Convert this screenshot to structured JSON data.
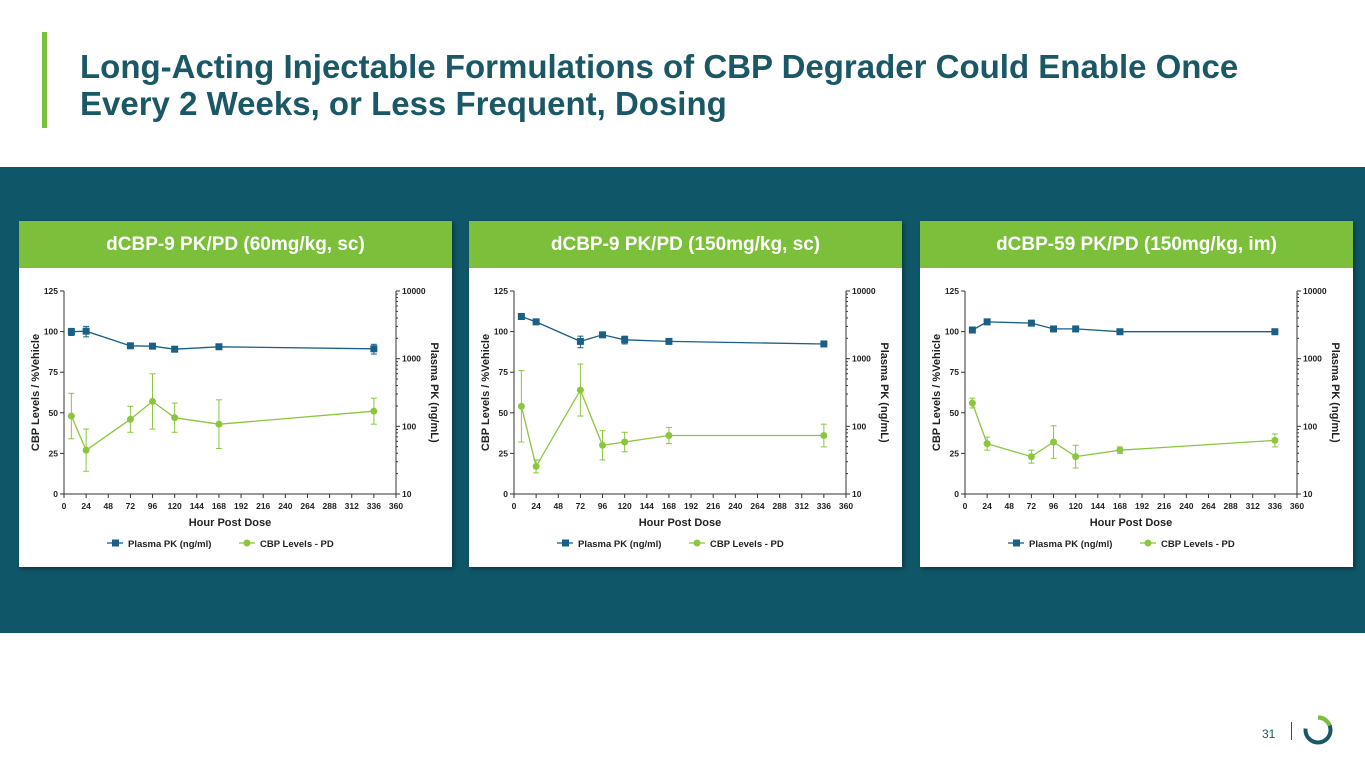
{
  "slide": {
    "title": "Long-Acting Injectable Formulations of CBP Degrader Could Enable Once Every 2 Weeks, or Less Frequent, Dosing",
    "page_number": "31"
  },
  "colors": {
    "pk": "#1a5f86",
    "pd": "#8cc63f",
    "accent": "#7bbf3a",
    "band": "#0f5668",
    "title": "#1b5866"
  },
  "chart_data": [
    {
      "type": "line",
      "title": "dCBP-9 PK/PD (60mg/kg, sc)",
      "xlabel": "Hour Post Dose",
      "ylabel": "CBP Levels / %Vehicle",
      "y2label": "Plasma  PK (ng/mL)",
      "xlim": [
        0,
        360
      ],
      "xticks": [
        "0",
        "24",
        "48",
        "72",
        "96",
        "120",
        "144",
        "168",
        "192",
        "216",
        "240",
        "264",
        "288",
        "312",
        "336",
        "360"
      ],
      "ylim": [
        0,
        125
      ],
      "yticks": [
        "0",
        "25",
        "50",
        "75",
        "100",
        "125"
      ],
      "y2lim": [
        10,
        10000
      ],
      "y2scale": "log",
      "y2ticks": [
        "10",
        "100",
        "1000",
        "10000"
      ],
      "series": [
        {
          "name": "Plasma PK (ng/ml)",
          "axis": "right",
          "marker": "square",
          "x": [
            8,
            24,
            72,
            96,
            120,
            168,
            336
          ],
          "y": [
            2500,
            2550,
            1550,
            1530,
            1380,
            1500,
            1400
          ],
          "err": [
            300,
            450,
            100,
            80,
            80,
            80,
            230
          ]
        },
        {
          "name": "CBP Levels - PD",
          "axis": "left",
          "marker": "circle",
          "x": [
            8,
            24,
            72,
            96,
            120,
            168,
            336
          ],
          "y": [
            48,
            27,
            46,
            57,
            47,
            43,
            51
          ],
          "err": [
            14,
            13,
            8,
            17,
            9,
            15,
            8
          ]
        }
      ]
    },
    {
      "type": "line",
      "title": "dCBP-9 PK/PD (150mg/kg, sc)",
      "xlabel": "Hour Post Dose",
      "ylabel": "CBP Levels / %Vehicle",
      "y2label": "Plasma  PK (ng/mL)",
      "xlim": [
        0,
        360
      ],
      "xticks": [
        "0",
        "24",
        "48",
        "72",
        "96",
        "120",
        "144",
        "168",
        "192",
        "216",
        "240",
        "264",
        "288",
        "312",
        "336",
        "360"
      ],
      "ylim": [
        0,
        125
      ],
      "yticks": [
        "0",
        "25",
        "50",
        "75",
        "100",
        "125"
      ],
      "y2lim": [
        10,
        10000
      ],
      "y2scale": "log",
      "y2ticks": [
        "10",
        "100",
        "1000",
        "10000"
      ],
      "series": [
        {
          "name": "Plasma PK (ng/ml)",
          "axis": "right",
          "marker": "square",
          "x": [
            8,
            24,
            72,
            96,
            120,
            168,
            336
          ],
          "y": [
            4200,
            3500,
            1800,
            2250,
            1900,
            1800,
            1650
          ],
          "err": [
            200,
            150,
            350,
            150,
            250,
            80,
            80
          ]
        },
        {
          "name": "CBP Levels - PD",
          "axis": "left",
          "marker": "circle",
          "x": [
            8,
            24,
            72,
            96,
            120,
            168,
            336
          ],
          "y": [
            54,
            17,
            64,
            30,
            32,
            36,
            36
          ],
          "err": [
            22,
            4,
            16,
            9,
            6,
            5,
            7
          ]
        }
      ]
    },
    {
      "type": "line",
      "title": "dCBP-59 PK/PD (150mg/kg, im)",
      "xlabel": "Hour Post Dose",
      "ylabel": "CBP Levels / %Vehicle",
      "y2label": "Plasma  PK (ng/mL)",
      "xlim": [
        0,
        360
      ],
      "xticks": [
        "0",
        "24",
        "48",
        "72",
        "96",
        "120",
        "144",
        "168",
        "192",
        "216",
        "240",
        "264",
        "288",
        "312",
        "336",
        "360"
      ],
      "ylim": [
        0,
        125
      ],
      "yticks": [
        "0",
        "25",
        "50",
        "75",
        "100",
        "125"
      ],
      "y2lim": [
        10,
        10000
      ],
      "y2scale": "log",
      "y2ticks": [
        "10",
        "100",
        "1000",
        "10000"
      ],
      "series": [
        {
          "name": "Plasma PK (ng/ml)",
          "axis": "right",
          "marker": "square",
          "x": [
            8,
            24,
            72,
            96,
            120,
            168,
            336
          ],
          "y": [
            2650,
            3500,
            3350,
            2750,
            2750,
            2500,
            2500
          ],
          "err": [
            0,
            0,
            0,
            0,
            0,
            0,
            0
          ]
        },
        {
          "name": "CBP Levels - PD",
          "axis": "left",
          "marker": "circle",
          "x": [
            8,
            24,
            72,
            96,
            120,
            168,
            336
          ],
          "y": [
            56,
            31,
            23,
            32,
            23,
            27,
            33
          ],
          "err": [
            3,
            4,
            4,
            10,
            7,
            2,
            4
          ]
        }
      ]
    }
  ]
}
